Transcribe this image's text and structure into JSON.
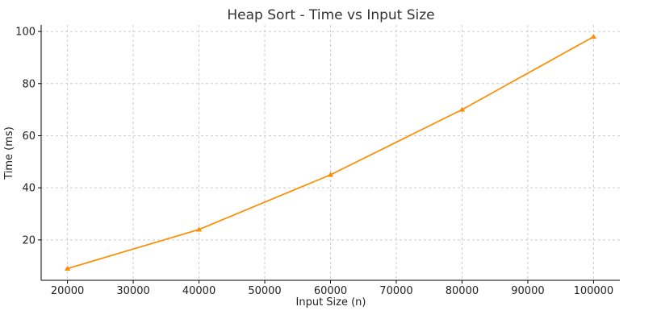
{
  "chart_data": {
    "type": "line",
    "title": "Heap Sort - Time vs Input Size",
    "xlabel": "Input Size (n)",
    "ylabel": "Time (ms)",
    "x": [
      20000,
      40000,
      60000,
      80000,
      100000
    ],
    "series": [
      {
        "values": [
          9,
          24,
          45,
          70,
          98
        ],
        "color": "#ff8c00",
        "marker": "triangle"
      }
    ],
    "xlim": [
      16000,
      104000
    ],
    "ylim": [
      4.5,
      102.5
    ],
    "xticks": [
      20000,
      30000,
      40000,
      50000,
      60000,
      70000,
      80000,
      90000,
      100000
    ],
    "yticks": [
      20,
      40,
      60,
      80,
      100
    ],
    "grid": true
  }
}
